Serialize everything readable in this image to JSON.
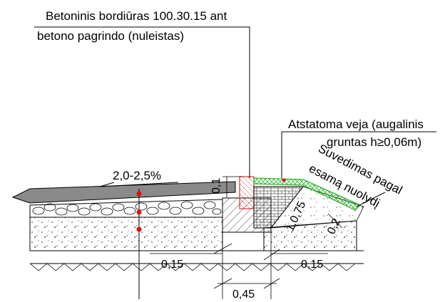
{
  "labels": {
    "curb_line1": "Betoninis bordiūras 100.30.15 ant",
    "curb_line2": "betono pagrindo (nuleistas)",
    "lawn_line1": "Atstatoma veja (augalinis",
    "lawn_line2": "gruntas h≥0,06m)",
    "tie_in_line1": "Suvedimas pagal",
    "tie_in_line2": "esamą nuolydį",
    "slope": "2,0-2,5%",
    "dim_01": "0,1",
    "dim_1075": "1,0,75",
    "dim_02": "0,2",
    "dim_015_left": "0,15",
    "dim_015_right": "0,15",
    "dim_045": "0,45"
  },
  "colors": {
    "line": "#000000",
    "curb_hatch": "#e03030",
    "lawn": "#2fb52f",
    "marker": "#e01010",
    "asphalt": "#8a8a8a"
  }
}
